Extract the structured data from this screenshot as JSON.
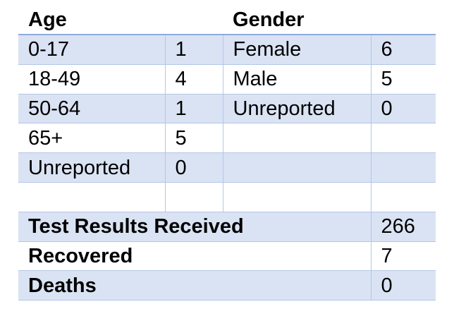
{
  "headers": {
    "age": "Age",
    "gender": "Gender"
  },
  "age_rows": [
    {
      "label": "0-17",
      "value": "1"
    },
    {
      "label": "18-49",
      "value": "4"
    },
    {
      "label": "50-64",
      "value": "1"
    },
    {
      "label": "65+",
      "value": "5"
    },
    {
      "label": "Unreported",
      "value": "0"
    },
    {
      "label": "",
      "value": ""
    }
  ],
  "gender_rows": [
    {
      "label": "Female",
      "value": "6"
    },
    {
      "label": "Male",
      "value": "5"
    },
    {
      "label": "Unreported",
      "value": "0"
    },
    {
      "label": "",
      "value": ""
    },
    {
      "label": "",
      "value": ""
    },
    {
      "label": "",
      "value": ""
    }
  ],
  "summary": [
    {
      "label": "Test Results Received",
      "value": "266"
    },
    {
      "label": "Recovered",
      "value": "7"
    },
    {
      "label": "Deaths",
      "value": "0"
    }
  ],
  "colors": {
    "row_shade": "#dae3f3",
    "border": "#b4c6e7",
    "header_rule": "#8eaadb"
  }
}
